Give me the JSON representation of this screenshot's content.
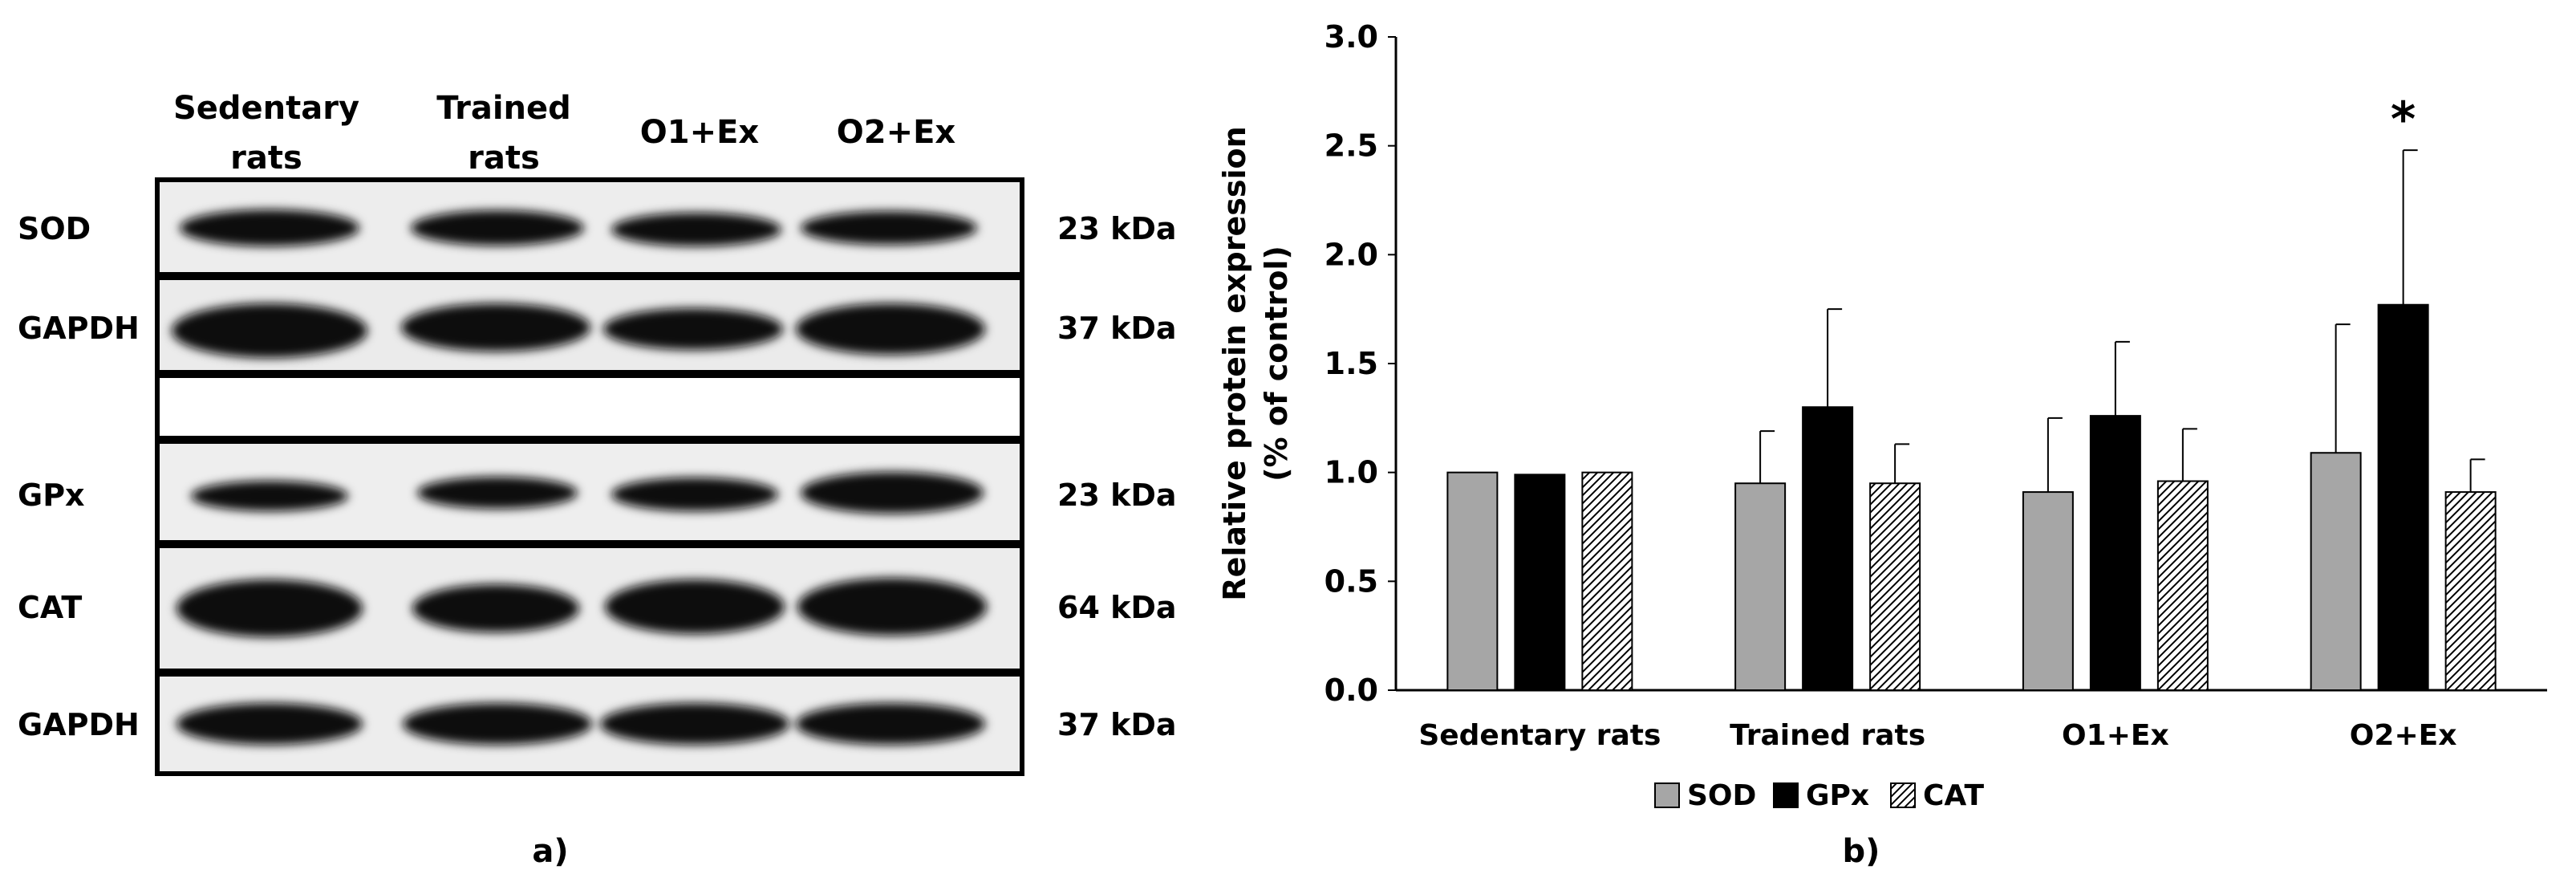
{
  "panel_a": {
    "label": "a)",
    "column_headers": [
      {
        "line1": "Sedentary",
        "line2": "rats"
      },
      {
        "line1": "Trained",
        "line2": "rats"
      },
      {
        "line1": "O1+Ex",
        "line2": ""
      },
      {
        "line1": "O2+Ex",
        "line2": ""
      }
    ],
    "rows": [
      {
        "label": "SOD",
        "kda": "23 kDa"
      },
      {
        "label": "GAPDH",
        "kda": "37 kDa"
      },
      {
        "label": "",
        "kda": ""
      },
      {
        "label": "GPx",
        "kda": "23 kDa"
      },
      {
        "label": "CAT",
        "kda": "64 kDa"
      },
      {
        "label": "GAPDH",
        "kda": "37 kDa"
      }
    ]
  },
  "panel_b": {
    "label": "b)"
  },
  "chart_data": {
    "type": "bar",
    "title": "",
    "xlabel": "",
    "ylabel_line1": "Relative protein expression",
    "ylabel_line2": "(% of control)",
    "ylim": [
      0,
      3
    ],
    "yticks": [
      "0.0",
      "0.5",
      "1.0",
      "1.5",
      "2.0",
      "2.5",
      "3.0"
    ],
    "grid": false,
    "legend_position": "bottom-center",
    "categories": [
      "Sedentary rats",
      "Trained rats",
      "O1+Ex",
      "O2+Ex"
    ],
    "series": [
      {
        "name": "SOD",
        "values": [
          1.0,
          0.95,
          0.91,
          1.09
        ],
        "errors": [
          0.0,
          0.24,
          0.34,
          0.59
        ],
        "color": "#a6a6a6",
        "pattern": "solid"
      },
      {
        "name": "GPx",
        "values": [
          0.99,
          1.3,
          1.26,
          1.77
        ],
        "errors": [
          0.0,
          0.45,
          0.34,
          0.71
        ],
        "color": "#000000",
        "pattern": "solid"
      },
      {
        "name": "CAT",
        "values": [
          1.0,
          0.95,
          0.96,
          0.91
        ],
        "errors": [
          0.0,
          0.18,
          0.24,
          0.15
        ],
        "color": "#000000",
        "pattern": "hatch"
      }
    ],
    "annotations": [
      {
        "text": "*",
        "category": "O2+Ex",
        "series": "GPx"
      }
    ]
  }
}
